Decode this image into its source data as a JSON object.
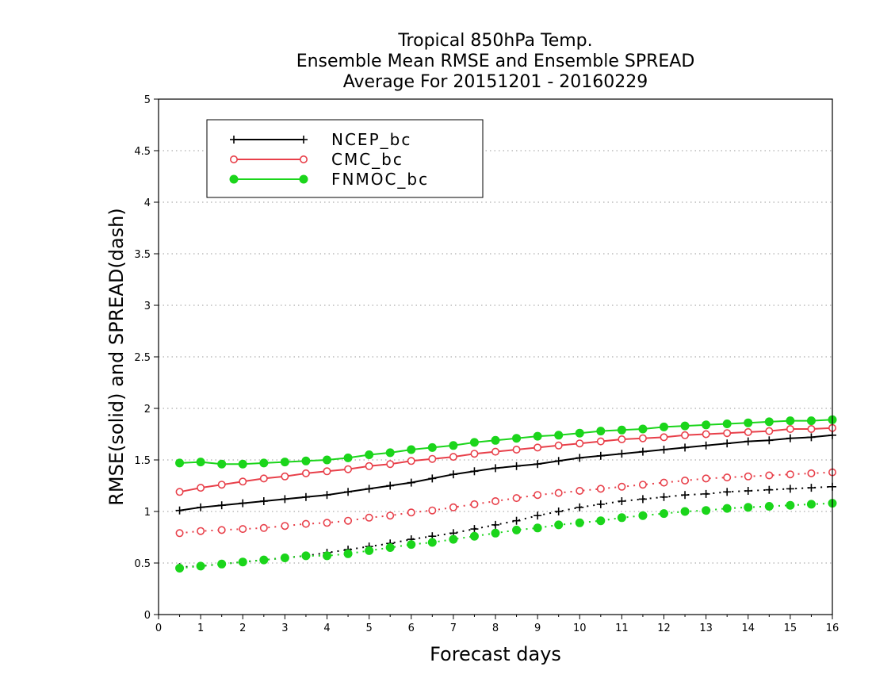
{
  "chart_data": {
    "type": "line",
    "title_lines": [
      "Tropical 850hPa Temp.",
      "Ensemble Mean RMSE and Ensemble SPREAD",
      "Average For 20151201 - 20160229"
    ],
    "xlabel": "Forecast days",
    "ylabel": "RMSE(solid) and SPREAD(dash)",
    "xlim": [
      0,
      16
    ],
    "ylim": [
      0,
      5
    ],
    "x_ticks": [
      "0",
      "1",
      "2",
      "3",
      "4",
      "5",
      "6",
      "7",
      "8",
      "9",
      "10",
      "11",
      "12",
      "13",
      "14",
      "15",
      "16"
    ],
    "y_ticks": [
      "0",
      "0.5",
      "1",
      "1.5",
      "2",
      "2.5",
      "3",
      "3.5",
      "4",
      "4.5",
      "5"
    ],
    "grid": "horizontal dotted",
    "legend_position": "top-left",
    "x": [
      0.5,
      1,
      1.5,
      2,
      2.5,
      3,
      3.5,
      4,
      4.5,
      5,
      5.5,
      6,
      6.5,
      7,
      7.5,
      8,
      8.5,
      9,
      9.5,
      10,
      10.5,
      11,
      11.5,
      12,
      12.5,
      13,
      13.5,
      14,
      14.5,
      15,
      15.5,
      16
    ],
    "series": [
      {
        "name": "NCEP_bc",
        "color": "#000000",
        "marker": "plus",
        "rmse": [
          1.01,
          1.04,
          1.06,
          1.08,
          1.1,
          1.12,
          1.14,
          1.16,
          1.19,
          1.22,
          1.25,
          1.28,
          1.32,
          1.36,
          1.39,
          1.42,
          1.44,
          1.46,
          1.49,
          1.52,
          1.54,
          1.56,
          1.58,
          1.6,
          1.62,
          1.64,
          1.66,
          1.68,
          1.69,
          1.71,
          1.72,
          1.74
        ],
        "spread": [
          0.46,
          0.47,
          0.49,
          0.51,
          0.53,
          0.55,
          0.57,
          0.6,
          0.63,
          0.66,
          0.69,
          0.73,
          0.76,
          0.79,
          0.83,
          0.87,
          0.91,
          0.96,
          1.0,
          1.04,
          1.07,
          1.1,
          1.12,
          1.14,
          1.16,
          1.17,
          1.19,
          1.2,
          1.21,
          1.22,
          1.23,
          1.24
        ]
      },
      {
        "name": "CMC_bc",
        "color": "#e8404a",
        "marker": "open-circle",
        "rmse": [
          1.19,
          1.23,
          1.26,
          1.29,
          1.32,
          1.34,
          1.37,
          1.39,
          1.41,
          1.44,
          1.46,
          1.49,
          1.51,
          1.53,
          1.56,
          1.58,
          1.6,
          1.62,
          1.64,
          1.66,
          1.68,
          1.7,
          1.71,
          1.72,
          1.74,
          1.75,
          1.76,
          1.77,
          1.78,
          1.8,
          1.8,
          1.81
        ],
        "spread": [
          0.79,
          0.81,
          0.82,
          0.83,
          0.84,
          0.86,
          0.88,
          0.89,
          0.91,
          0.94,
          0.96,
          0.99,
          1.01,
          1.04,
          1.07,
          1.1,
          1.13,
          1.16,
          1.18,
          1.2,
          1.22,
          1.24,
          1.26,
          1.28,
          1.3,
          1.32,
          1.33,
          1.34,
          1.35,
          1.36,
          1.37,
          1.38
        ]
      },
      {
        "name": "FNMOC_bc",
        "color": "#1bd51b",
        "marker": "filled-circle",
        "rmse": [
          1.47,
          1.48,
          1.46,
          1.46,
          1.47,
          1.48,
          1.49,
          1.5,
          1.52,
          1.55,
          1.57,
          1.6,
          1.62,
          1.64,
          1.67,
          1.69,
          1.71,
          1.73,
          1.74,
          1.76,
          1.78,
          1.79,
          1.8,
          1.82,
          1.83,
          1.84,
          1.85,
          1.86,
          1.87,
          1.88,
          1.88,
          1.89
        ],
        "spread": [
          0.45,
          0.47,
          0.49,
          0.51,
          0.53,
          0.55,
          0.57,
          0.57,
          0.59,
          0.62,
          0.65,
          0.68,
          0.7,
          0.73,
          0.76,
          0.79,
          0.82,
          0.84,
          0.87,
          0.89,
          0.91,
          0.94,
          0.96,
          0.98,
          1.0,
          1.01,
          1.03,
          1.04,
          1.05,
          1.06,
          1.07,
          1.08
        ]
      }
    ]
  }
}
